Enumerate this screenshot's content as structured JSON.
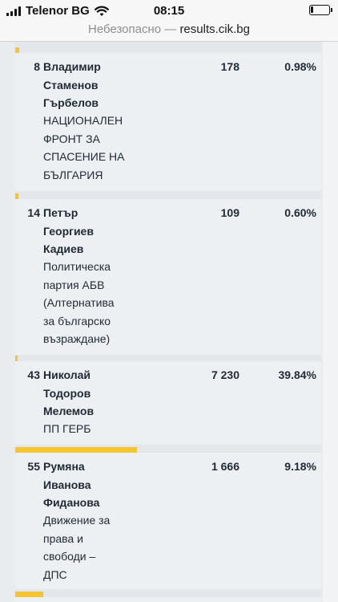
{
  "status_bar": {
    "carrier": "Telenor BG",
    "time": "08:15",
    "battery_level": 0.15
  },
  "url_bar": {
    "insecure_label": "Небезопасно —",
    "host": "results.cik.bg"
  },
  "candidates": [
    {
      "number": "8",
      "name_lines": [
        "Владимир",
        "Стаменов",
        "Гърбелов"
      ],
      "party_lines": [
        "НАЦИОНАЛЕН",
        "ФРОНТ ЗА",
        "СПАСЕНИЕ НА",
        "БЪЛГАРИЯ"
      ],
      "votes": "178",
      "percent": "0.98%",
      "share": 0.0098
    },
    {
      "number": "14",
      "name_lines": [
        "Петър",
        "Георгиев",
        "Кадиев"
      ],
      "party_lines": [
        "Политическа",
        "партия АБВ",
        "(Алтернатива",
        "за българско",
        "възраждане)"
      ],
      "votes": "109",
      "percent": "0.60%",
      "share": 0.006
    },
    {
      "number": "43",
      "name_lines": [
        "Николай",
        "Тодоров",
        "Мелемов"
      ],
      "party_lines": [
        "ПП ГЕРБ"
      ],
      "votes": "7 230",
      "percent": "39.84%",
      "share": 0.3984
    },
    {
      "number": "55",
      "name_lines": [
        "Румяна",
        "Иванова",
        "Фиданова"
      ],
      "party_lines": [
        "Движение за",
        "права и",
        "свободи –",
        "ДПС"
      ],
      "votes": "1 666",
      "percent": "9.18%",
      "share": 0.0918
    }
  ],
  "colors": {
    "bar": "#f5c431",
    "row_bg": "#edf0f3"
  }
}
